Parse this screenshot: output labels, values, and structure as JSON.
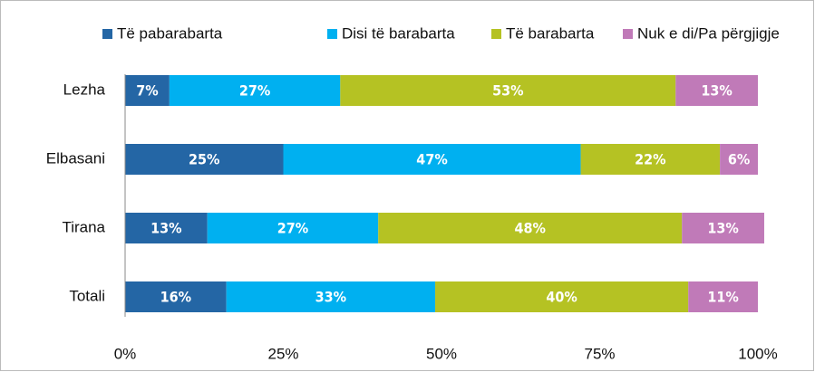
{
  "chart_data": {
    "type": "stacked_barh",
    "categories": [
      "Lezha",
      "Elbasani",
      "Tirana",
      "Totali"
    ],
    "series": [
      {
        "name": "Të pabarabarta",
        "color": "#2466a5",
        "values": [
          7,
          25,
          13,
          16
        ],
        "value_labels": [
          "7%",
          "25%",
          "13%",
          "16%"
        ]
      },
      {
        "name": "Disi të barabarta",
        "color": "#00b0f0",
        "values": [
          27,
          47,
          27,
          33
        ],
        "value_labels": [
          "27%",
          "47%",
          "27%",
          "33%"
        ]
      },
      {
        "name": "Të barabarta",
        "color": "#b5c223",
        "values": [
          53,
          22,
          48,
          40
        ],
        "value_labels": [
          "53%",
          "22%",
          "48%",
          "40%"
        ]
      },
      {
        "name": "Nuk e di/Pa përgjigje",
        "color": "#c07ab8",
        "values": [
          13,
          6,
          13,
          11
        ],
        "value_labels": [
          "13%",
          "6%",
          "13%",
          "11%"
        ]
      }
    ],
    "xlim": [
      0,
      100
    ],
    "xticks": [
      {
        "value": 0,
        "label": "0%"
      },
      {
        "value": 25,
        "label": "25%"
      },
      {
        "value": 50,
        "label": "50%"
      },
      {
        "value": 75,
        "label": "75%"
      },
      {
        "value": 100,
        "label": "100%"
      }
    ],
    "legend": "top"
  }
}
